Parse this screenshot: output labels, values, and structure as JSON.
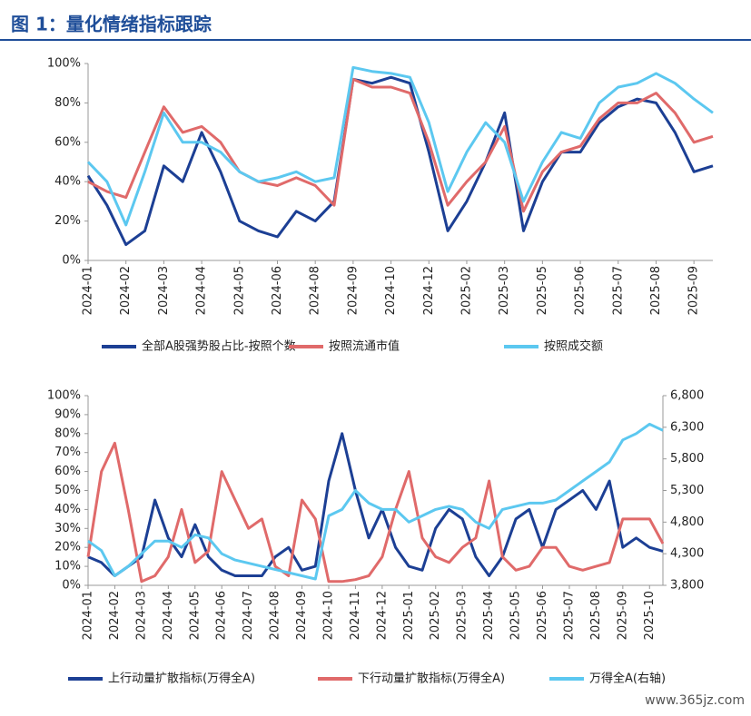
{
  "header": {
    "title": "图 1：量化情绪指标跟踪"
  },
  "watermark": "www.365jz.com",
  "chart_data": [
    {
      "type": "line",
      "categories": [
        "2024-01",
        null,
        "2024-02",
        null,
        "2024-03",
        null,
        "2024-04",
        null,
        "2024-05",
        null,
        "2024-06",
        null,
        "2024-08",
        null,
        "2024-09",
        null,
        "2024-10",
        null,
        "2024-12",
        null,
        "2025-02",
        null,
        "2025-03",
        null,
        "2025-05",
        null,
        "2025-06",
        null,
        "2025-07",
        null,
        "2025-08",
        null,
        "2025-09",
        null
      ],
      "ylim": [
        0,
        100
      ],
      "yticks": [
        {
          "value": 0,
          "label": "0%"
        },
        {
          "value": 20,
          "label": "20%"
        },
        {
          "value": 40,
          "label": "40%"
        },
        {
          "value": 60,
          "label": "60%"
        },
        {
          "value": 80,
          "label": "80%"
        },
        {
          "value": 100,
          "label": "100%"
        }
      ],
      "series": [
        {
          "name": "全部A股强势股占比-按照个数",
          "color": "#1c3f94",
          "values": [
            43,
            28,
            8,
            15,
            48,
            40,
            65,
            45,
            20,
            15,
            12,
            25,
            20,
            30,
            92,
            90,
            93,
            90,
            55,
            15,
            30,
            50,
            75,
            15,
            40,
            55,
            55,
            70,
            78,
            82,
            80,
            65,
            45,
            48
          ]
        },
        {
          "name": "按照流通市值",
          "color": "#e06a6a",
          "values": [
            40,
            35,
            32,
            55,
            78,
            65,
            68,
            60,
            45,
            40,
            38,
            42,
            38,
            28,
            92,
            88,
            88,
            85,
            60,
            28,
            40,
            50,
            68,
            25,
            45,
            55,
            58,
            72,
            80,
            80,
            85,
            75,
            60,
            63
          ]
        },
        {
          "name": "按照成交额",
          "color": "#5cc8f0",
          "values": [
            50,
            40,
            18,
            45,
            75,
            60,
            60,
            55,
            45,
            40,
            42,
            45,
            40,
            42,
            98,
            96,
            95,
            93,
            70,
            35,
            55,
            70,
            60,
            30,
            50,
            65,
            62,
            80,
            88,
            90,
            95,
            90,
            82,
            75
          ]
        }
      ]
    },
    {
      "type": "line",
      "categories": [
        "2024-01",
        null,
        "2024-02",
        null,
        "2024-03",
        null,
        "2024-04",
        null,
        "2024-05",
        null,
        "2024-06",
        null,
        "2024-07",
        null,
        "2024-08",
        null,
        "2024-09",
        null,
        "2024-10",
        null,
        "2024-11",
        null,
        "2024-12",
        null,
        "2025-01",
        null,
        "2025-02",
        null,
        "2025-03",
        null,
        "2025-04",
        null,
        "2025-05",
        null,
        "2025-06",
        null,
        "2025-07",
        null,
        "2025-08",
        null,
        "2025-09",
        null,
        "2025-10",
        null
      ],
      "ylim": [
        0,
        100
      ],
      "yticks": [
        {
          "value": 0,
          "label": "0%"
        },
        {
          "value": 10,
          "label": "10%"
        },
        {
          "value": 20,
          "label": "20%"
        },
        {
          "value": 30,
          "label": "30%"
        },
        {
          "value": 40,
          "label": "40%"
        },
        {
          "value": 50,
          "label": "50%"
        },
        {
          "value": 60,
          "label": "60%"
        },
        {
          "value": 70,
          "label": "70%"
        },
        {
          "value": 80,
          "label": "80%"
        },
        {
          "value": 90,
          "label": "90%"
        },
        {
          "value": 100,
          "label": "100%"
        }
      ],
      "y2lim": [
        3800,
        6800
      ],
      "y2ticks": [
        {
          "value": 3800,
          "label": "3,800"
        },
        {
          "value": 4300,
          "label": "4,300"
        },
        {
          "value": 4800,
          "label": "4,800"
        },
        {
          "value": 5300,
          "label": "5,300"
        },
        {
          "value": 5800,
          "label": "5,800"
        },
        {
          "value": 6300,
          "label": "6,300"
        },
        {
          "value": 6800,
          "label": "6,800"
        }
      ],
      "series": [
        {
          "name": "上行动量扩散指标(万得全A)",
          "color": "#1c3f94",
          "values": [
            15,
            12,
            5,
            10,
            15,
            45,
            25,
            15,
            32,
            15,
            8,
            5,
            5,
            5,
            15,
            20,
            8,
            10,
            55,
            80,
            50,
            25,
            40,
            20,
            10,
            8,
            30,
            40,
            35,
            15,
            5,
            15,
            35,
            40,
            20,
            40,
            45,
            50,
            40,
            55,
            20,
            25,
            20,
            18
          ]
        },
        {
          "name": "下行动量扩散指标(万得全A)",
          "color": "#e06a6a",
          "values": [
            15,
            60,
            75,
            40,
            2,
            5,
            15,
            40,
            12,
            18,
            60,
            45,
            30,
            35,
            10,
            5,
            45,
            35,
            2,
            2,
            3,
            5,
            15,
            40,
            60,
            25,
            15,
            12,
            20,
            25,
            55,
            15,
            8,
            10,
            20,
            20,
            10,
            8,
            10,
            12,
            35,
            35,
            35,
            22
          ]
        },
        {
          "name": "万得全A(右轴)",
          "color": "#5cc8f0",
          "axis": "y2",
          "values": [
            4500,
            4350,
            3950,
            4100,
            4300,
            4500,
            4500,
            4400,
            4600,
            4550,
            4300,
            4200,
            4150,
            4100,
            4050,
            4000,
            3950,
            3900,
            4900,
            5000,
            5300,
            5100,
            5000,
            5000,
            4800,
            4900,
            5000,
            5050,
            5000,
            4800,
            4700,
            5000,
            5050,
            5100,
            5100,
            5150,
            5300,
            5450,
            5600,
            5750,
            6100,
            6200,
            6350,
            6250
          ]
        }
      ]
    }
  ]
}
